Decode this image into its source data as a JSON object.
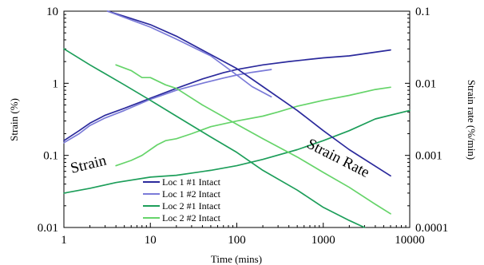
{
  "chart_data": {
    "type": "line",
    "xlabel": "Time (mins)",
    "ylabel_left": "Strain (%)",
    "ylabel_right": "Strain rate (%/min)",
    "x_scale": "log",
    "y_scale_left": "log",
    "y_scale_right": "log",
    "xlim": [
      1,
      10000
    ],
    "ylim_left": [
      0.01,
      10
    ],
    "ylim_right": [
      0.0001,
      0.1
    ],
    "x_ticks": [
      "1",
      "10",
      "100",
      "1000",
      "10000"
    ],
    "y_ticks_left": [
      "0.01",
      "0.1",
      "1",
      "10"
    ],
    "y_ticks_right": [
      "0.0001",
      "0.001",
      "0.01",
      "0.1"
    ],
    "grid": false,
    "legend_position": "bottom-center",
    "annotations": [
      "Strain",
      "Strain Rate"
    ],
    "series": [
      {
        "name": "Loc 1 #1 Intact",
        "quantity": "strain",
        "color": "#2b2a9c",
        "x": [
          1,
          1.5,
          2,
          3,
          5,
          10,
          20,
          40,
          70,
          100,
          200,
          400,
          1000,
          2000,
          6000
        ],
        "y": [
          0.16,
          0.22,
          0.28,
          0.36,
          0.45,
          0.62,
          0.85,
          1.15,
          1.4,
          1.55,
          1.8,
          2.0,
          2.25,
          2.4,
          2.9
        ]
      },
      {
        "name": "Loc 1 #2 Intact",
        "quantity": "strain",
        "color": "#7a7ad8",
        "x": [
          1,
          1.5,
          2,
          3,
          5,
          10,
          20,
          40,
          70,
          100,
          150,
          250
        ],
        "y": [
          0.15,
          0.2,
          0.26,
          0.33,
          0.42,
          0.6,
          0.8,
          1.0,
          1.18,
          1.3,
          1.42,
          1.55
        ]
      },
      {
        "name": "Loc 2 #1 Intact",
        "quantity": "strain",
        "color": "#1d9e5a",
        "x": [
          1,
          2,
          4,
          10,
          20,
          50,
          100,
          200,
          500,
          1000,
          2000,
          4000,
          10000
        ],
        "y": [
          0.03,
          0.035,
          0.042,
          0.05,
          0.053,
          0.062,
          0.072,
          0.088,
          0.12,
          0.16,
          0.22,
          0.32,
          0.42
        ]
      },
      {
        "name": "Loc 2 #2 Intact",
        "quantity": "strain",
        "color": "#66d46a",
        "x": [
          4,
          6,
          8,
          12,
          15,
          20,
          30,
          50,
          100,
          200,
          300,
          500,
          1000,
          2000,
          4000,
          6000
        ],
        "y": [
          0.072,
          0.085,
          0.1,
          0.14,
          0.16,
          0.17,
          0.2,
          0.25,
          0.3,
          0.35,
          0.4,
          0.48,
          0.58,
          0.68,
          0.82,
          0.88
        ]
      },
      {
        "name": "Loc 1 #1 Intact",
        "quantity": "strain rate",
        "color": "#2b2a9c",
        "x": [
          3.2,
          5,
          10,
          20,
          50,
          100,
          200,
          500,
          1000,
          2000,
          6000
        ],
        "y": [
          0.1,
          0.085,
          0.065,
          0.045,
          0.025,
          0.016,
          0.009,
          0.0042,
          0.0022,
          0.0012,
          0.00052
        ]
      },
      {
        "name": "Loc 1 #2 Intact",
        "quantity": "strain rate",
        "color": "#7a7ad8",
        "x": [
          3.2,
          5,
          10,
          20,
          50,
          100,
          150,
          250
        ],
        "y": [
          0.1,
          0.082,
          0.06,
          0.041,
          0.024,
          0.013,
          0.009,
          0.0065
        ]
      },
      {
        "name": "Loc 2 #1 Intact",
        "quantity": "strain rate",
        "color": "#1d9e5a",
        "x": [
          1,
          2,
          5,
          10,
          20,
          50,
          100,
          200,
          500,
          1000,
          2000,
          3000
        ],
        "y": [
          0.03,
          0.018,
          0.0095,
          0.0058,
          0.0035,
          0.0018,
          0.0011,
          0.00062,
          0.00033,
          0.00019,
          0.000125,
          0.0001
        ]
      },
      {
        "name": "Loc 2 #2 Intact",
        "quantity": "strain rate",
        "color": "#66d46a",
        "x": [
          4,
          6,
          8,
          10,
          15,
          20,
          40,
          100,
          200,
          500,
          1000,
          2000,
          4000,
          6000
        ],
        "y": [
          0.018,
          0.015,
          0.012,
          0.012,
          0.0095,
          0.0085,
          0.005,
          0.0027,
          0.0017,
          0.00095,
          0.00058,
          0.00036,
          0.00021,
          0.000155
        ]
      }
    ]
  }
}
